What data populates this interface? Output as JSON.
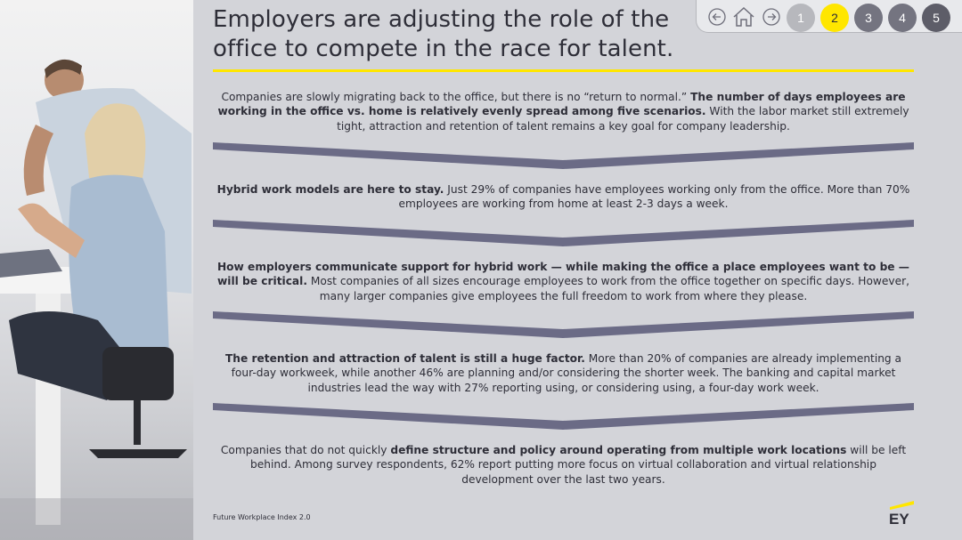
{
  "title": "Employers are adjusting the role of the office to compete in the race for talent.",
  "nav": {
    "pages": [
      "1",
      "2",
      "3",
      "4",
      "5"
    ],
    "active_page": "2",
    "icons": [
      "back-icon",
      "home-icon",
      "forward-icon"
    ]
  },
  "blocks": [
    {
      "pre": "Companies are slowly migrating back to the office, but there is no “return to normal.” ",
      "bold": "The number of days employees are working in the office vs. home is relatively evenly spread among five scenarios.",
      "post": " With the labor market still extremely tight, attraction and retention of talent remains a key goal for company leadership."
    },
    {
      "pre": "",
      "bold": "Hybrid work models are here to stay.",
      "post": " Just 29% of companies have employees working only from the office. More than 70% employees are working from home at least 2-3 days a week."
    },
    {
      "pre": "",
      "bold": "How employers communicate support for hybrid work — while making the office a place employees want to be — will be critical.",
      "post": " Most companies of all sizes encourage employees to work from the office together on specific days. However, many larger companies give employees the full freedom to work from where they please."
    },
    {
      "pre": "",
      "bold": "The retention and attraction of talent is still a huge factor.",
      "post": " More than 20% of companies are already implementing a four-day workweek, while another 46% are planning and/or considering the shorter week. The banking and capital market industries lead the way with 27% reporting using, or considering using, a four-day work week."
    },
    {
      "pre": "Companies that do not quickly ",
      "bold": "define structure and policy around operating from multiple work locations",
      "post": " will be left behind. Among survey respondents, 62% report putting more focus on virtual collaboration and virtual relationship development over the last two years."
    }
  ],
  "footer": "Future Workplace Index 2.0",
  "logo": "EY",
  "colors": {
    "accent_yellow": "#ffe600",
    "chevron": "#6b6b86",
    "background": "#d3d4d9",
    "text": "#2e2e38"
  }
}
